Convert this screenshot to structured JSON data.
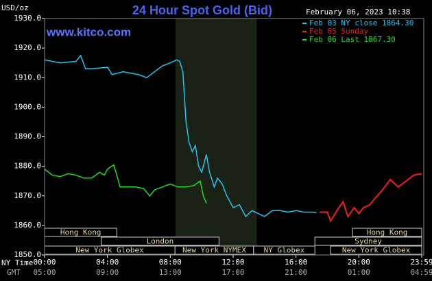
{
  "chart_data": {
    "type": "line",
    "title": "24 Hour Spot Gold (Bid)",
    "watermark": "www.kitco.com",
    "date_label": "February 06, 2023 10:38",
    "ylabel": "USD/oz",
    "x_row_labels": [
      "NY Time",
      "GMT"
    ],
    "xlim": [
      0,
      24
    ],
    "ylim": [
      1850,
      1930
    ],
    "yticks": [
      {
        "value": 1850,
        "label": "1850.0"
      },
      {
        "value": 1860,
        "label": "1860.0"
      },
      {
        "value": 1870,
        "label": "1870.0"
      },
      {
        "value": 1880,
        "label": "1880.0"
      },
      {
        "value": 1890,
        "label": "1890.0"
      },
      {
        "value": 1900,
        "label": "1900.0"
      },
      {
        "value": 1910,
        "label": "1910.0"
      },
      {
        "value": 1920,
        "label": "1920.0"
      },
      {
        "value": 1930,
        "label": "1930.0"
      }
    ],
    "xticks": [
      {
        "value": 0,
        "label": "00:00"
      },
      {
        "value": 4,
        "label": "04:00"
      },
      {
        "value": 8,
        "label": "08:00"
      },
      {
        "value": 12,
        "label": "12:00"
      },
      {
        "value": 16,
        "label": "16:00"
      },
      {
        "value": 20,
        "label": "20:00"
      },
      {
        "value": 24,
        "label": "23:59"
      }
    ],
    "x2ticks": [
      {
        "value": 0,
        "label": "05:00"
      },
      {
        "value": 4,
        "label": "09:00"
      },
      {
        "value": 8,
        "label": "13:00"
      },
      {
        "value": 12,
        "label": "17:00"
      },
      {
        "value": 16,
        "label": "21:00"
      },
      {
        "value": 20,
        "label": "01:00"
      },
      {
        "value": 24,
        "label": "04:59"
      }
    ],
    "grid": false,
    "highlight": [
      8.33,
      13.5
    ],
    "sessions": [
      [
        {
          "label": "Hong Kong",
          "start": 0,
          "end": 4.6
        },
        {
          "label": "Hong Kong",
          "start": 19.6,
          "end": 24
        }
      ],
      [
        {
          "label": "London",
          "start": 3.6,
          "end": 11.1
        },
        {
          "label": "Sydney",
          "start": 17.2,
          "end": 24
        }
      ],
      [
        {
          "label": "New York Globex",
          "start": 0,
          "end": 8.3
        },
        {
          "label": "New York NYMEX",
          "start": 8.3,
          "end": 13.3
        },
        {
          "label": "NY Globex",
          "start": 13.3,
          "end": 17.2
        },
        {
          "label": "New York Globex",
          "start": 18.2,
          "end": 24
        }
      ]
    ],
    "series": [
      {
        "name": "Feb 03 NY close 1864.30",
        "color": "#22c4f4",
        "x": [
          0,
          1,
          2,
          2.3,
          2.6,
          3,
          4,
          4.3,
          5,
          6,
          6.5,
          7,
          7.5,
          8,
          8.4,
          8.6,
          8.8,
          9,
          9.2,
          9.4,
          9.6,
          9.8,
          10,
          10.3,
          10.5,
          10.8,
          11,
          11.3,
          11.6,
          12,
          12.4,
          12.8,
          13.2,
          13.6,
          14,
          14.5,
          15,
          15.5,
          16,
          16.5,
          17,
          17.3
        ],
        "values": [
          1916,
          1915,
          1915.5,
          1917.5,
          1913,
          1913,
          1913.5,
          1911,
          1912,
          1911,
          1910,
          1912,
          1914,
          1915,
          1916,
          1915.5,
          1912,
          1895,
          1888,
          1885,
          1887,
          1880,
          1878,
          1884,
          1878,
          1873,
          1876,
          1874,
          1870,
          1866,
          1867,
          1863,
          1865,
          1864,
          1863,
          1865,
          1865,
          1864.5,
          1865,
          1864.5,
          1864.5,
          1864.3
        ]
      },
      {
        "name": "Feb 05 Sunday",
        "color": "#f02020",
        "x": [
          17.5,
          18,
          18.2,
          18.6,
          19,
          19.3,
          19.7,
          20,
          20.3,
          20.7,
          21,
          21.5,
          22,
          22.5,
          23,
          23.5,
          24
        ],
        "values": [
          1864.5,
          1864.5,
          1861.5,
          1865,
          1868,
          1863,
          1866,
          1864,
          1866,
          1867,
          1869,
          1872,
          1875.5,
          1873,
          1875,
          1877,
          1877.5
        ]
      },
      {
        "name": "Feb 06 Last 1867.30",
        "color": "#22e022",
        "x": [
          0,
          0.5,
          1,
          1.5,
          2,
          2.5,
          3,
          3.5,
          3.8,
          4,
          4.4,
          4.6,
          4.8,
          5.2,
          5.8,
          6.3,
          6.7,
          7,
          7.5,
          8,
          8.5,
          9,
          9.5,
          9.9,
          10.1,
          10.3
        ],
        "values": [
          1879,
          1877,
          1876.5,
          1877.5,
          1877,
          1876,
          1876,
          1878,
          1877,
          1879,
          1880.5,
          1877,
          1873,
          1873,
          1873,
          1872.5,
          1870,
          1872,
          1873,
          1874,
          1873,
          1873,
          1873.5,
          1875,
          1870,
          1867.5
        ]
      }
    ]
  }
}
